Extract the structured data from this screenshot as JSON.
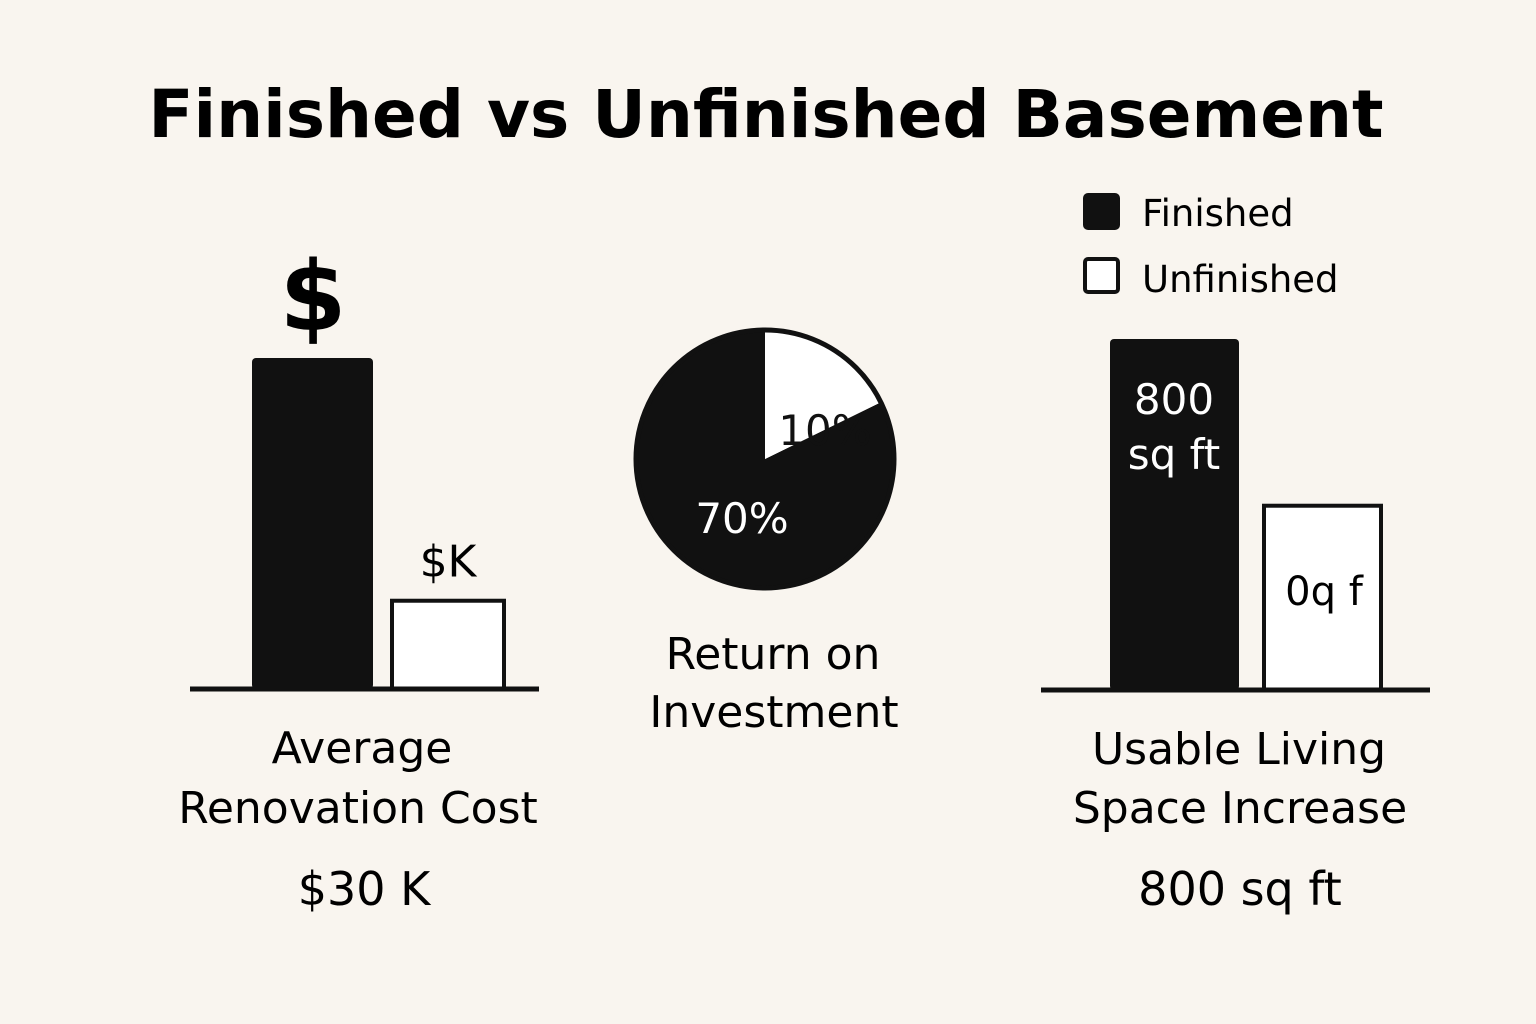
{
  "title": "Finished vs Unfinished Basement",
  "legend": {
    "items": [
      {
        "label": "Finished",
        "color": "#111111"
      },
      {
        "label": "Unfinished",
        "color": "#ffffff"
      }
    ]
  },
  "panels": {
    "cost": {
      "icon_glyph": "$",
      "label_line1": "Average",
      "label_line2": "Renovation Cost",
      "summary": "$30 K",
      "unfinished_bar_label": "$K"
    },
    "roi": {
      "label_line1": "Return on",
      "label_line2": "Investment"
    },
    "space": {
      "finished_bar_label_line1": "800",
      "finished_bar_label_line2": "sq ft",
      "unfinished_bar_label": "0q f",
      "label_line1": "Usable Living",
      "label_line2": "Space Increase",
      "summary": "800 sq ft"
    }
  },
  "chart_data": [
    {
      "type": "bar",
      "title": "Average Renovation Cost",
      "categories": [
        "Finished",
        "Unfinished"
      ],
      "values": [
        30,
        8
      ],
      "unit": "$K",
      "ylim": [
        0,
        30
      ]
    },
    {
      "type": "pie",
      "title": "Return on Investment",
      "slices": [
        {
          "label": "70%",
          "value": 70,
          "color": "#111111"
        },
        {
          "label": "10%",
          "value": 10,
          "color": "#ffffff"
        }
      ]
    },
    {
      "type": "bar",
      "title": "Usable Living Space Increase",
      "categories": [
        "Finished",
        "Unfinished"
      ],
      "values": [
        800,
        420
      ],
      "unit": "sq ft",
      "ylim": [
        0,
        800
      ]
    }
  ],
  "colors": {
    "background": "#f9f5ef",
    "ink": "#111111",
    "light": "#ffffff"
  }
}
